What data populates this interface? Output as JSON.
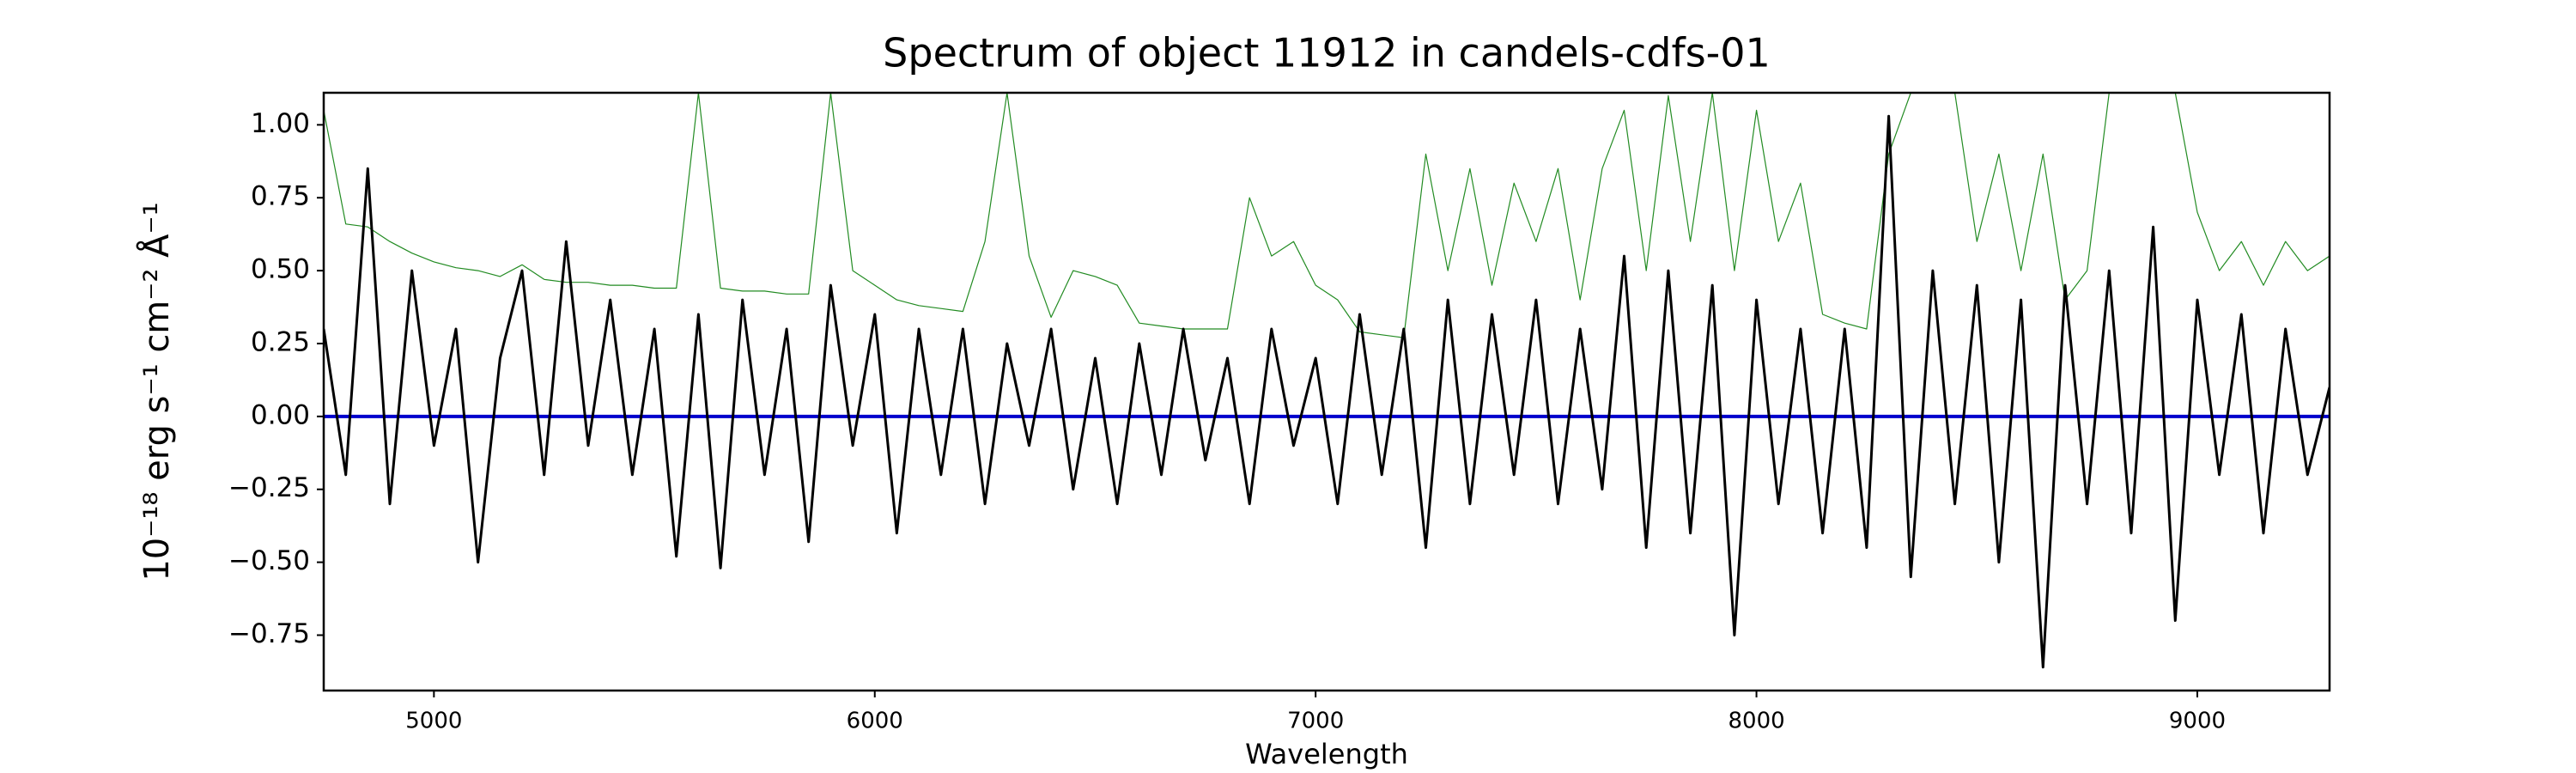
{
  "chart_data": {
    "type": "line",
    "title": "Spectrum of object 11912 in candels-cdfs-01",
    "xlabel": "Wavelength",
    "ylabel": "10⁻¹⁸ erg s⁻¹ cm⁻² Å⁻¹",
    "x": [
      4750,
      4800,
      4850,
      4900,
      4950,
      5000,
      5050,
      5100,
      5150,
      5200,
      5250,
      5300,
      5350,
      5400,
      5450,
      5500,
      5550,
      5600,
      5650,
      5700,
      5750,
      5800,
      5850,
      5900,
      5950,
      6000,
      6050,
      6100,
      6150,
      6200,
      6250,
      6300,
      6350,
      6400,
      6450,
      6500,
      6550,
      6600,
      6650,
      6700,
      6750,
      6800,
      6850,
      6900,
      6950,
      7000,
      7050,
      7100,
      7150,
      7200,
      7250,
      7300,
      7350,
      7400,
      7450,
      7500,
      7550,
      7600,
      7650,
      7700,
      7750,
      7800,
      7850,
      7900,
      7950,
      8000,
      8050,
      8100,
      8150,
      8200,
      8250,
      8300,
      8350,
      8400,
      8450,
      8500,
      8550,
      8600,
      8650,
      8700,
      8750,
      8800,
      8850,
      8900,
      8950,
      9000,
      9050,
      9100,
      9150,
      9200,
      9250,
      9300
    ],
    "series": [
      {
        "color": "#228b22",
        "width": 1.2,
        "values": [
          1.05,
          0.66,
          0.65,
          0.6,
          0.56,
          0.53,
          0.51,
          0.5,
          0.48,
          0.52,
          0.47,
          0.46,
          0.46,
          0.45,
          0.45,
          0.44,
          0.44,
          1.11,
          0.44,
          0.43,
          0.43,
          0.42,
          0.42,
          1.11,
          0.5,
          0.45,
          0.4,
          0.38,
          0.37,
          0.36,
          0.6,
          1.11,
          0.55,
          0.34,
          0.5,
          0.48,
          0.45,
          0.32,
          0.31,
          0.3,
          0.3,
          0.3,
          0.75,
          0.55,
          0.6,
          0.45,
          0.4,
          0.29,
          0.28,
          0.27,
          0.9,
          0.5,
          0.85,
          0.45,
          0.8,
          0.6,
          0.85,
          0.4,
          0.85,
          1.05,
          0.5,
          1.1,
          0.6,
          1.11,
          0.5,
          1.05,
          0.6,
          0.8,
          0.35,
          0.32,
          0.3,
          0.9,
          1.11,
          1.11,
          1.11,
          0.6,
          0.9,
          0.5,
          0.9,
          0.4,
          0.5,
          1.11,
          1.11,
          1.11,
          1.11,
          0.7,
          0.5,
          0.6,
          0.45,
          0.6,
          0.5,
          0.55
        ]
      },
      {
        "color": "#0000cc",
        "width": 4,
        "x": [
          4750,
          9300
        ],
        "values": [
          0,
          0
        ]
      },
      {
        "color": "#000000",
        "width": 3,
        "values": [
          0.3,
          -0.2,
          0.85,
          -0.3,
          0.5,
          -0.1,
          0.3,
          -0.5,
          0.2,
          0.5,
          -0.2,
          0.6,
          -0.1,
          0.4,
          -0.2,
          0.3,
          -0.48,
          0.35,
          -0.52,
          0.4,
          -0.2,
          0.3,
          -0.43,
          0.45,
          -0.1,
          0.35,
          -0.4,
          0.3,
          -0.2,
          0.3,
          -0.3,
          0.25,
          -0.1,
          0.3,
          -0.25,
          0.2,
          -0.3,
          0.25,
          -0.2,
          0.3,
          -0.15,
          0.2,
          -0.3,
          0.3,
          -0.1,
          0.2,
          -0.3,
          0.35,
          -0.2,
          0.3,
          -0.45,
          0.4,
          -0.3,
          0.35,
          -0.2,
          0.4,
          -0.3,
          0.3,
          -0.25,
          0.55,
          -0.45,
          0.5,
          -0.4,
          0.45,
          -0.75,
          0.4,
          -0.3,
          0.3,
          -0.4,
          0.3,
          -0.45,
          1.03,
          -0.55,
          0.5,
          -0.3,
          0.45,
          -0.5,
          0.4,
          -0.86,
          0.45,
          -0.3,
          0.5,
          -0.4,
          0.65,
          -0.7,
          0.4,
          -0.2,
          0.35,
          -0.4,
          0.3,
          -0.2,
          0.1
        ]
      }
    ],
    "xlim": [
      4750,
      9300
    ],
    "ylim": [
      -0.94,
      1.11
    ],
    "xticks": [
      5000,
      6000,
      7000,
      8000,
      9000
    ],
    "yticks": [
      {
        "value": -0.75,
        "label": "−0.75"
      },
      {
        "value": -0.5,
        "label": "−0.50"
      },
      {
        "value": -0.25,
        "label": "−0.25"
      },
      {
        "value": 0,
        "label": "0.00"
      },
      {
        "value": 0.25,
        "label": "0.25"
      },
      {
        "value": 0.5,
        "label": "0.50"
      },
      {
        "value": 0.75,
        "label": "0.75"
      },
      {
        "value": 1,
        "label": "1.00"
      }
    ]
  }
}
